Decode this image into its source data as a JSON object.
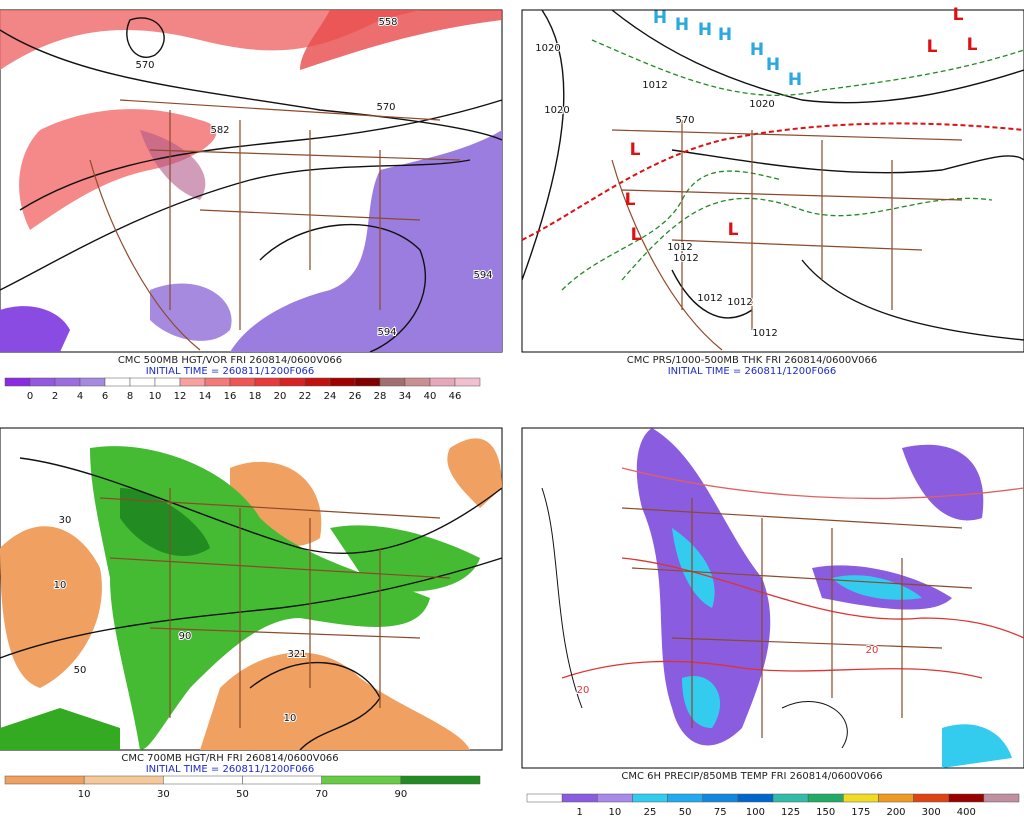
{
  "panels": [
    {
      "caption": "CMC 500MB HGT/VOR FRI 260814/0600V066",
      "initial_time": "INITIAL TIME = 260811/1200F066",
      "labels": [
        "558",
        "570",
        "570",
        "582",
        "594",
        "594"
      ],
      "colorbar": {
        "colors": [
          "#8a2be2",
          "#9457e0",
          "#9d6ddf",
          "#a58ae0",
          "#ffffff",
          "#ffffff",
          "#ffffff",
          "#f7a0a0",
          "#f27a7a",
          "#ee5555",
          "#e83a3a",
          "#d62222",
          "#c01010",
          "#a00000",
          "#800000",
          "#a07070",
          "#c89090",
          "#e6a8b8",
          "#f0c0d0"
        ],
        "labels": [
          "0",
          "2",
          "4",
          "6",
          "8",
          "10",
          "12",
          "14",
          "16",
          "18",
          "20",
          "22",
          "24",
          "26",
          "28",
          "34",
          "40",
          "46"
        ]
      }
    },
    {
      "caption": "CMC PRS/1000-500MB THK FRI 260814/0600V066",
      "initial_time": "INITIAL TIME = 260811/1200F066",
      "labels": [
        "1020",
        "1020",
        "1020",
        "570",
        "1012",
        "1012",
        "1012",
        "1012",
        "1012",
        "1012"
      ],
      "highs": [
        "H",
        "H",
        "H",
        "H",
        "H",
        "H",
        "H"
      ],
      "lows": [
        "L",
        "L",
        "L",
        "L",
        "L",
        "L",
        "L"
      ]
    },
    {
      "caption": "CMC 700MB HGT/RH FRI 260814/0600V066",
      "initial_time": "INITIAL TIME = 260811/1200F066",
      "labels": [
        "10",
        "30",
        "321",
        "50",
        "10",
        "90"
      ],
      "colorbar": {
        "colors": [
          "#f0a060",
          "#f5c89a",
          "#ffffff",
          "#ffffff",
          "#66cc44",
          "#228b22"
        ],
        "labels": [
          "10",
          "30",
          "50",
          "70",
          "90"
        ]
      }
    },
    {
      "caption": "CMC 6H PRECIP/850MB TEMP FRI 260814/0600V066",
      "labels": [
        "20",
        "20"
      ],
      "colorbar": {
        "colors": [
          "#ffffff",
          "#8a5ce0",
          "#a88ae8",
          "#33ccee",
          "#22aaee",
          "#1188dd",
          "#0066cc",
          "#33bbaa",
          "#22aa66",
          "#eedd22",
          "#ee9922",
          "#dd4411",
          "#990000",
          "#c090a0"
        ],
        "labels": [
          "1",
          "10",
          "25",
          "50",
          "75",
          "100",
          "125",
          "150",
          "175",
          "200",
          "300",
          "400"
        ]
      }
    }
  ]
}
